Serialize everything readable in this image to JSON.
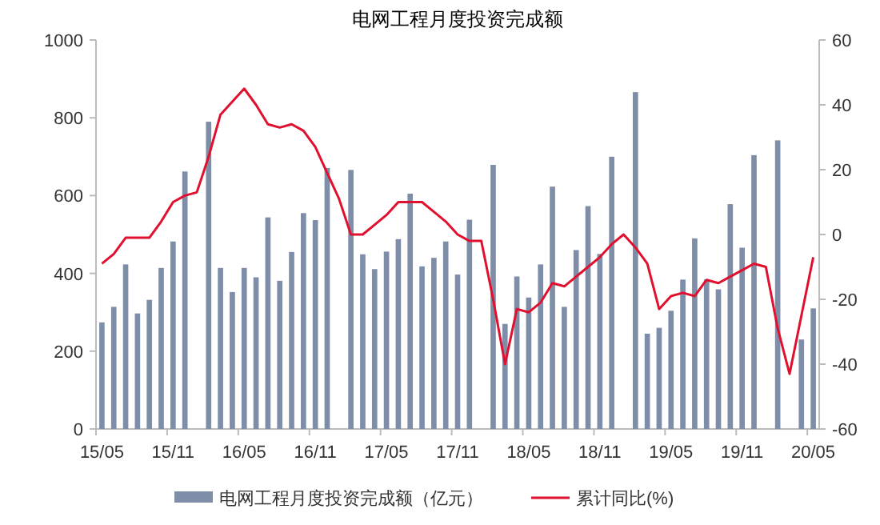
{
  "chart_data": {
    "type": "bar",
    "title": "电网工程月度投资完成额",
    "categories": [
      "15/05",
      null,
      null,
      null,
      null,
      null,
      "15/11",
      null,
      null,
      null,
      null,
      null,
      "16/05",
      null,
      null,
      null,
      null,
      null,
      "16/11",
      null,
      null,
      null,
      null,
      null,
      "17/05",
      null,
      null,
      null,
      null,
      null,
      "17/11",
      null,
      null,
      null,
      null,
      null,
      "18/05",
      null,
      null,
      null,
      null,
      null,
      "18/11",
      null,
      null,
      null,
      null,
      null,
      "19/05",
      null,
      null,
      null,
      null,
      null,
      "19/11",
      null,
      null,
      null,
      null,
      null,
      "20/05"
    ],
    "series": [
      {
        "name": "电网工程月度投资完成额（亿元）",
        "color": "#7f8ea8",
        "values": [
          274,
          314,
          423,
          297,
          332,
          414,
          482,
          662,
          null,
          790,
          414,
          352,
          414,
          390,
          544,
          381,
          455,
          555,
          537,
          671,
          null,
          666,
          449,
          411,
          456,
          488,
          605,
          418,
          440,
          482,
          397,
          538,
          null,
          679,
          270,
          392,
          338,
          423,
          623,
          314,
          460,
          573,
          450,
          700,
          null,
          866,
          245,
          260,
          304,
          384,
          490,
          384,
          359,
          578,
          466,
          704,
          null,
          742,
          null,
          230,
          310
        ]
      },
      {
        "name": "累计同比(%)",
        "type": "line",
        "axis": "y2",
        "color": "#e0102f",
        "values": [
          -9,
          -6,
          -1,
          -1,
          -1,
          4,
          10,
          12,
          13,
          24,
          37,
          41,
          45,
          40,
          34,
          33,
          34,
          32,
          27,
          19,
          11,
          0,
          0,
          3,
          6,
          10,
          10,
          10,
          7,
          4,
          0,
          -2,
          -2,
          -20,
          -40,
          -23,
          -24,
          -21,
          -15,
          -16,
          -13,
          -10,
          -7,
          -3,
          0,
          -4,
          -9,
          -23,
          -19,
          -18,
          -19,
          -14,
          -15,
          -13,
          -11,
          -9,
          -10,
          -29,
          -43,
          -25,
          -7
        ]
      }
    ],
    "ylim": [
      0,
      1000
    ],
    "yticks": [
      0,
      200,
      400,
      600,
      800,
      1000
    ],
    "y2lim": [
      -60,
      60
    ],
    "y2ticks": [
      -60,
      -40,
      -20,
      0,
      20,
      40,
      60
    ],
    "legend": "bottom"
  }
}
